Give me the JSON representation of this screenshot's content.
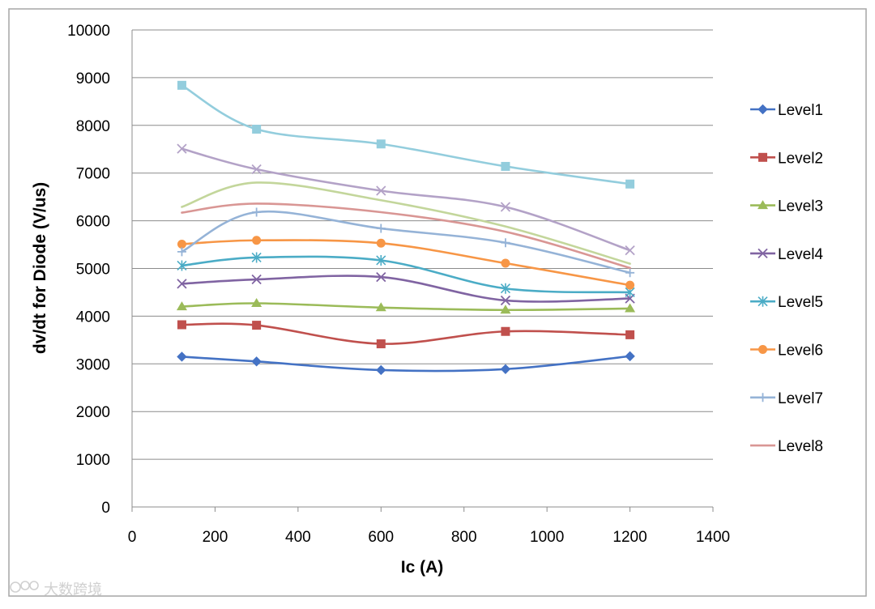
{
  "chart_data": {
    "type": "line",
    "xlabel": "Ic (A)",
    "ylabel": "dv/dt for Diode (V/us)",
    "xlim": [
      0,
      1400
    ],
    "ylim": [
      0,
      10000
    ],
    "xticks": [
      0,
      200,
      400,
      600,
      800,
      1000,
      1200,
      1400
    ],
    "yticks": [
      0,
      1000,
      2000,
      3000,
      4000,
      5000,
      6000,
      7000,
      8000,
      9000,
      10000
    ],
    "grid": "horizontal",
    "legend_position": "right",
    "smooth": true,
    "series": [
      {
        "name": "Level1",
        "color": "#4472C4",
        "marker": "diamond",
        "x": [
          120,
          300,
          600,
          900,
          1200
        ],
        "y": [
          3150,
          3050,
          2870,
          2890,
          3160
        ]
      },
      {
        "name": "Level2",
        "color": "#C0504D",
        "marker": "square",
        "x": [
          120,
          300,
          600,
          900,
          1200
        ],
        "y": [
          3820,
          3810,
          3420,
          3680,
          3610
        ]
      },
      {
        "name": "Level3",
        "color": "#9BBB59",
        "marker": "triangle",
        "x": [
          120,
          300,
          600,
          900,
          1200
        ],
        "y": [
          4200,
          4270,
          4180,
          4130,
          4160
        ]
      },
      {
        "name": "Level4",
        "color": "#8064A2",
        "marker": "x",
        "x": [
          120,
          300,
          600,
          900,
          1200
        ],
        "y": [
          4680,
          4770,
          4820,
          4330,
          4370
        ]
      },
      {
        "name": "Level5",
        "color": "#4BACC6",
        "marker": "star",
        "x": [
          120,
          300,
          600,
          900,
          1200
        ],
        "y": [
          5060,
          5230,
          5170,
          4580,
          4500
        ]
      },
      {
        "name": "Level6",
        "color": "#F79646",
        "marker": "circle",
        "x": [
          120,
          300,
          600,
          900,
          1200
        ],
        "y": [
          5510,
          5590,
          5530,
          5110,
          4650
        ]
      },
      {
        "name": "Level7",
        "color": "#95B3D7",
        "marker": "plus",
        "x": [
          120,
          300,
          600,
          900,
          1200
        ],
        "y": [
          5350,
          6180,
          5840,
          5540,
          4910
        ]
      },
      {
        "name": "Level8",
        "color": "#D99694",
        "marker": "none",
        "x": [
          120,
          300,
          600,
          900,
          1200
        ],
        "y": [
          6170,
          6360,
          6180,
          5770,
          5010
        ]
      },
      {
        "name": "",
        "color": "#B3A2C7",
        "marker": "x",
        "x": [
          120,
          300,
          600,
          900,
          1200
        ],
        "y": [
          7510,
          7080,
          6630,
          6290,
          5380
        ]
      },
      {
        "name": "",
        "color": "#C3D69B",
        "marker": "none",
        "x": [
          120,
          300,
          600,
          900,
          1200
        ],
        "y": [
          6290,
          6800,
          6430,
          5880,
          5100
        ]
      },
      {
        "name": "",
        "color": "#93CDDD",
        "marker": "square",
        "x": [
          120,
          300,
          600,
          900,
          1200
        ],
        "y": [
          8840,
          7920,
          7610,
          7140,
          6770
        ]
      }
    ]
  },
  "watermark": {
    "text": "大数跨境"
  }
}
